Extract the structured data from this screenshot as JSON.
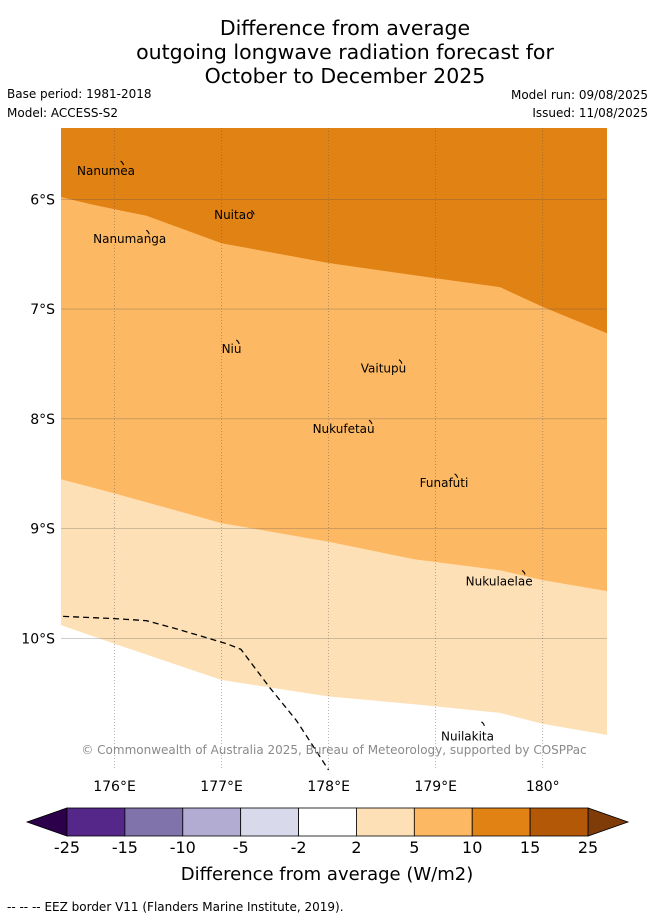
{
  "title": {
    "line1": "Difference from average",
    "line2": "outgoing longwave radiation forecast for",
    "line3": "October to December 2025"
  },
  "meta": {
    "base_period": "Base period: 1981-2018",
    "model": "Model: ACCESS-S2",
    "model_run": "Model run: 09/08/2025",
    "issued": "Issued: 11/08/2025"
  },
  "map": {
    "lon_range": [
      175.5,
      180.6
    ],
    "lat_range": [
      -5.35,
      -11.2
    ],
    "lon_ticks": [
      {
        "value": 176,
        "label": "176°E"
      },
      {
        "value": 177,
        "label": "177°E"
      },
      {
        "value": 178,
        "label": "178°E"
      },
      {
        "value": 179,
        "label": "179°E"
      },
      {
        "value": 180,
        "label": "180°"
      }
    ],
    "lat_ticks": [
      {
        "value": -6,
        "label": "6°S"
      },
      {
        "value": -7,
        "label": "7°S"
      },
      {
        "value": -8,
        "label": "8°S"
      },
      {
        "value": -9,
        "label": "9°S"
      },
      {
        "value": -10,
        "label": "10°S"
      }
    ],
    "band_colors": {
      "10_to_15": "#e08214",
      "5_to_10": "#fdb863",
      "2_to_5": "#fee0b6",
      "below_2": "#ffffff"
    },
    "contour_15_10": [
      [
        175.5,
        -5.98
      ],
      [
        175.8,
        -6.05
      ],
      [
        176.3,
        -6.15
      ],
      [
        177.0,
        -6.4
      ],
      [
        178.0,
        -6.58
      ],
      [
        179.0,
        -6.72
      ],
      [
        179.6,
        -6.8
      ],
      [
        180.0,
        -6.98
      ],
      [
        180.6,
        -7.22
      ]
    ],
    "contour_10_5": [
      [
        175.5,
        -8.55
      ],
      [
        176.0,
        -8.68
      ],
      [
        177.0,
        -8.95
      ],
      [
        178.0,
        -9.12
      ],
      [
        178.8,
        -9.28
      ],
      [
        179.6,
        -9.38
      ],
      [
        180.0,
        -9.47
      ],
      [
        180.6,
        -9.57
      ]
    ],
    "contour_5_2": [
      [
        175.5,
        -9.88
      ],
      [
        176.0,
        -10.05
      ],
      [
        177.0,
        -10.38
      ],
      [
        178.0,
        -10.53
      ],
      [
        178.8,
        -10.6
      ],
      [
        179.6,
        -10.68
      ],
      [
        180.0,
        -10.78
      ],
      [
        180.6,
        -10.88
      ]
    ],
    "eez_border": [
      [
        175.52,
        -9.8
      ],
      [
        176.0,
        -9.82
      ],
      [
        176.3,
        -9.84
      ],
      [
        176.6,
        -9.92
      ],
      [
        177.05,
        -10.05
      ],
      [
        177.18,
        -10.1
      ],
      [
        177.45,
        -10.45
      ],
      [
        177.7,
        -10.75
      ],
      [
        178.0,
        -11.2
      ]
    ],
    "islands": [
      {
        "name": "Nanumea",
        "label_at": [
          175.65,
          -5.78
        ],
        "lon": 176.08,
        "lat": -5.67
      },
      {
        "name": "Nuitao",
        "label_at": [
          176.93,
          -6.18
        ],
        "lon": 177.3,
        "lat": -6.12
      },
      {
        "name": "Nanumanga",
        "label_at": [
          175.8,
          -6.4
        ],
        "lon": 176.32,
        "lat": -6.3
      },
      {
        "name": "Niu",
        "label_at": [
          177.0,
          -7.4
        ],
        "lon": 177.16,
        "lat": -7.3
      },
      {
        "name": "Vaitupu",
        "label_at": [
          178.3,
          -7.58
        ],
        "lon": 178.68,
        "lat": -7.48
      },
      {
        "name": "Nukufetau",
        "label_at": [
          177.85,
          -8.13
        ],
        "lon": 178.4,
        "lat": -8.03
      },
      {
        "name": "Funafuti",
        "label_at": [
          178.85,
          -8.62
        ],
        "lon": 179.2,
        "lat": -8.52
      },
      {
        "name": "Nukulaelae",
        "label_at": [
          179.28,
          -9.52
        ],
        "lon": 179.83,
        "lat": -9.4
      },
      {
        "name": "Nuilakita",
        "label_at": [
          179.05,
          -10.93
        ],
        "lon": 179.45,
        "lat": -10.78
      }
    ],
    "copyright": "© Commonwealth of Australia 2025, Bureau of Meteorology, supported by COSPPac"
  },
  "colorbar": {
    "title": "Difference from average (W/m2)",
    "tick_labels": [
      "-25",
      "-15",
      "-10",
      "-5",
      "-2",
      "2",
      "5",
      "10",
      "15",
      "25"
    ],
    "segment_colors": [
      "#542788",
      "#8073ac",
      "#b2abd2",
      "#d8daeb",
      "#ffffff",
      "#fee0b6",
      "#fdb863",
      "#e08214",
      "#b35806"
    ],
    "under_color": "#2d004b",
    "over_color": "#7f3b08"
  },
  "footer": {
    "legend_symbol": "--  --  --",
    "text": "EEZ border V11 (Flanders Marine Institute, 2019)."
  }
}
